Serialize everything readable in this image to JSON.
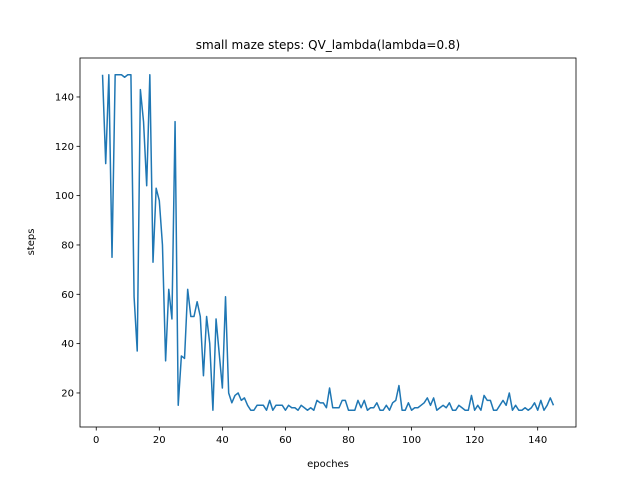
{
  "chart_data": {
    "type": "line",
    "title": "small maze steps: QV_lambda(lambda=0.8)",
    "x_label": "epoches",
    "y_label": "steps",
    "x": [
      2,
      3,
      4,
      5,
      6,
      7,
      8,
      9,
      10,
      11,
      12,
      13,
      14,
      15,
      16,
      17,
      18,
      19,
      20,
      21,
      22,
      23,
      24,
      25,
      26,
      27,
      28,
      29,
      30,
      31,
      32,
      33,
      34,
      35,
      36,
      37,
      38,
      39,
      40,
      41,
      42,
      43,
      44,
      45,
      46,
      47,
      48,
      49,
      50,
      51,
      52,
      53,
      54,
      55,
      56,
      57,
      58,
      59,
      60,
      61,
      62,
      63,
      64,
      65,
      66,
      67,
      68,
      69,
      70,
      71,
      72,
      73,
      74,
      75,
      76,
      77,
      78,
      79,
      80,
      81,
      82,
      83,
      84,
      85,
      86,
      87,
      88,
      89,
      90,
      91,
      92,
      93,
      94,
      95,
      96,
      97,
      98,
      99,
      100,
      101,
      102,
      103,
      104,
      105,
      106,
      107,
      108,
      109,
      110,
      111,
      112,
      113,
      114,
      115,
      116,
      117,
      118,
      119,
      120,
      121,
      122,
      123,
      124,
      125,
      126,
      127,
      128,
      129,
      130,
      131,
      132,
      133,
      134,
      135,
      136,
      137,
      138,
      139,
      140,
      141,
      142,
      143,
      144,
      145
    ],
    "series": [
      {
        "color": "#1f77b4",
        "values": [
          149,
          113,
          149,
          75,
          149,
          149,
          149,
          148,
          149,
          149,
          59,
          37,
          143,
          130,
          104,
          149,
          73,
          103,
          98,
          80,
          33,
          62,
          50,
          130,
          15,
          35,
          34,
          62,
          51,
          51,
          57,
          51,
          27,
          51,
          40,
          13,
          50,
          36,
          22,
          59,
          20,
          16,
          19,
          20,
          17,
          18,
          15,
          13,
          13,
          15,
          15,
          15,
          13,
          17,
          13,
          15,
          15,
          15,
          13,
          15,
          14,
          14,
          13,
          15,
          14,
          13,
          14,
          13,
          17,
          16,
          16,
          14,
          22,
          14,
          14,
          14,
          17,
          17,
          13,
          13,
          13,
          17,
          14,
          17,
          13,
          14,
          14,
          16,
          13,
          13,
          15,
          13,
          16,
          17,
          23,
          13,
          13,
          16,
          13,
          14,
          14,
          15,
          16,
          18,
          15,
          18,
          13,
          14,
          15,
          14,
          16,
          13,
          13,
          15,
          14,
          13,
          13,
          19,
          13,
          15,
          13,
          19,
          17,
          17,
          13,
          13,
          15,
          17,
          15,
          20,
          13,
          15,
          13,
          13,
          14,
          13,
          14,
          16,
          13,
          17,
          13,
          15,
          18,
          15
        ]
      }
    ],
    "xlim": [
      -5.15,
      152.15
    ],
    "ylim": [
      6.2,
      155.8
    ],
    "xticks": [
      0,
      20,
      40,
      60,
      80,
      100,
      120,
      140
    ],
    "yticks": [
      20,
      40,
      60,
      80,
      100,
      120,
      140
    ]
  }
}
